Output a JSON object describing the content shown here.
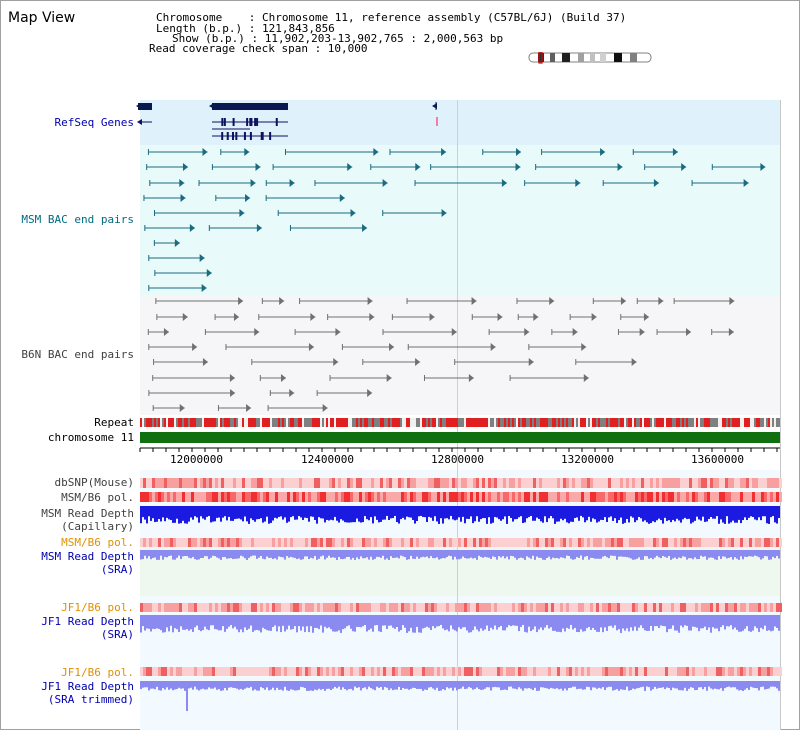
{
  "title": "Map View",
  "info": {
    "line1": "Chromosome    : Chromosome 11, reference assembly (C57BL/6J) (Build 37)",
    "line2": "Length (b.p.) : 121,843,856",
    "line3": "Show (b.p.) : 11,902,203-13,902,765 : 2,000,563 bp",
    "line4": "Read coverage check span : 10,000"
  },
  "tracks": {
    "refseq": "RefSeq Genes",
    "msm_bac": "MSM BAC end pairs",
    "b6n_bac": "B6N BAC end pairs",
    "repeat": "Repeat",
    "chromosome": "chromosome 11",
    "dbsnp": "dbSNP(Mouse)",
    "msm_b6_pol": "MSM/B6 pol.",
    "msm_depth_cap_1": "MSM Read Depth",
    "msm_depth_cap_2": "(Capillary)",
    "msm_b6_pol_2": "MSM/B6 pol.",
    "msm_depth_sra_1": "MSM Read Depth",
    "msm_depth_sra_2": "(SRA)",
    "jf1_b6_pol": "JF1/B6 pol.",
    "jf1_depth_sra_1": "JF1 Read Depth",
    "jf1_depth_sra_2": "(SRA)",
    "jf1_b6_pol_2": "JF1/B6 pol.",
    "jf1_depth_trim_1": "JF1 Read Depth",
    "jf1_depth_trim_2": "(SRA trimmed)"
  },
  "axis": {
    "ticks": [
      "12000000",
      "12400000",
      "12800000",
      "13200000",
      "13600000"
    ]
  },
  "colors": {
    "refseq_bg": "#dff2fb",
    "msm_bg": "#e8fafa",
    "b6n_bg": "#f4f4f6",
    "chromosome": "#107010",
    "depth_blue": "#1a1ae0",
    "depth_light": "#8a8af0",
    "pol_red": "#f04040"
  }
}
